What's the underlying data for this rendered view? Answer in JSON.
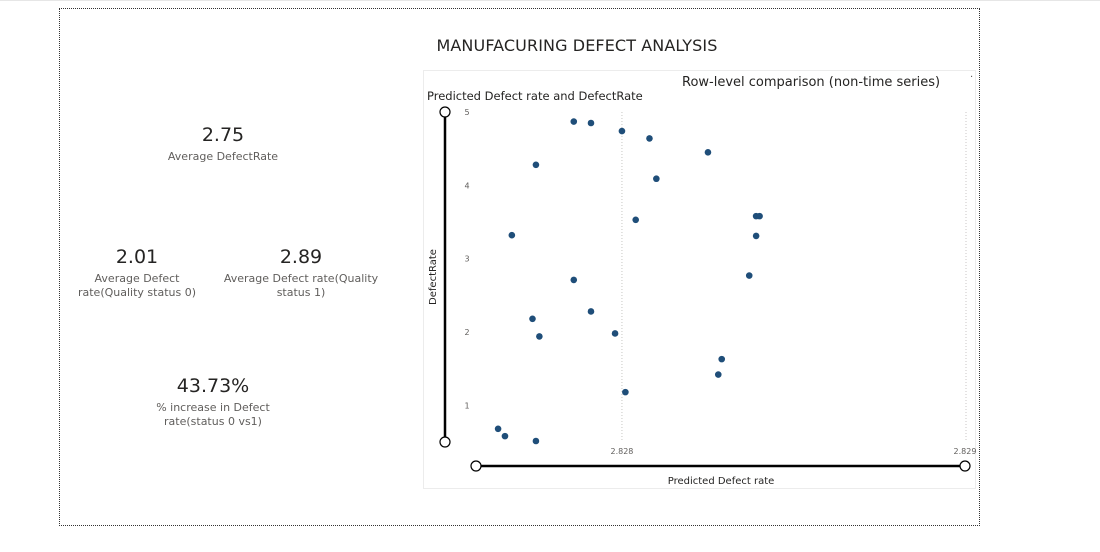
{
  "page": {
    "title": "MANUFACURING DEFECT ANALYSIS"
  },
  "cards": {
    "avg_defect_rate": {
      "value": "2.75",
      "label": "Average DefectRate"
    },
    "avg_status0": {
      "value": "2.01",
      "label_line1": "Average Defect",
      "label_line2": "rate(Quality status 0)"
    },
    "avg_status1": {
      "value": "2.89",
      "label_line1": "Average Defect rate(Quality",
      "label_line2": "status 1)"
    },
    "pct_increase": {
      "value": "43.73%",
      "label_line1": "% increase in Defect",
      "label_line2": "rate(status 0 vs1)"
    }
  },
  "visual": {
    "subtitle": "Row-level comparison (non-time series)"
  },
  "chart_data": {
    "type": "scatter",
    "title": "Predicted Defect rate and DefectRate",
    "xlabel": "Predicted Defect rate",
    "ylabel": "DefectRate",
    "xlim": [
      2.82757,
      2.829
    ],
    "ylim": [
      0.5,
      5
    ],
    "x_ticks": [
      {
        "value": 2.828,
        "label": "2.828"
      },
      {
        "value": 2.829,
        "label": "2.829"
      }
    ],
    "y_ticks": [
      {
        "value": 1,
        "label": "1"
      },
      {
        "value": 2,
        "label": "2"
      },
      {
        "value": 3,
        "label": "3"
      },
      {
        "value": 4,
        "label": "4"
      },
      {
        "value": 5,
        "label": "5"
      }
    ],
    "grid": "x-dotted",
    "point_color": "#1f4e79",
    "points": [
      {
        "x": 2.82768,
        "y": 3.32
      },
      {
        "x": 2.82764,
        "y": 0.68
      },
      {
        "x": 2.82766,
        "y": 0.58
      },
      {
        "x": 2.82775,
        "y": 4.28
      },
      {
        "x": 2.82774,
        "y": 2.18
      },
      {
        "x": 2.82776,
        "y": 1.94
      },
      {
        "x": 2.82775,
        "y": 0.51
      },
      {
        "x": 2.82786,
        "y": 4.87
      },
      {
        "x": 2.82786,
        "y": 2.71
      },
      {
        "x": 2.82791,
        "y": 4.85
      },
      {
        "x": 2.82791,
        "y": 2.28
      },
      {
        "x": 2.82798,
        "y": 1.98
      },
      {
        "x": 2.828,
        "y": 4.74
      },
      {
        "x": 2.82801,
        "y": 1.18
      },
      {
        "x": 2.82804,
        "y": 3.53
      },
      {
        "x": 2.82808,
        "y": 4.64
      },
      {
        "x": 2.8281,
        "y": 4.09
      },
      {
        "x": 2.82825,
        "y": 4.45
      },
      {
        "x": 2.82828,
        "y": 1.42
      },
      {
        "x": 2.82829,
        "y": 1.63
      },
      {
        "x": 2.82837,
        "y": 2.77
      },
      {
        "x": 2.82839,
        "y": 3.31
      },
      {
        "x": 2.82839,
        "y": 3.58
      },
      {
        "x": 2.8284,
        "y": 3.58
      }
    ]
  }
}
